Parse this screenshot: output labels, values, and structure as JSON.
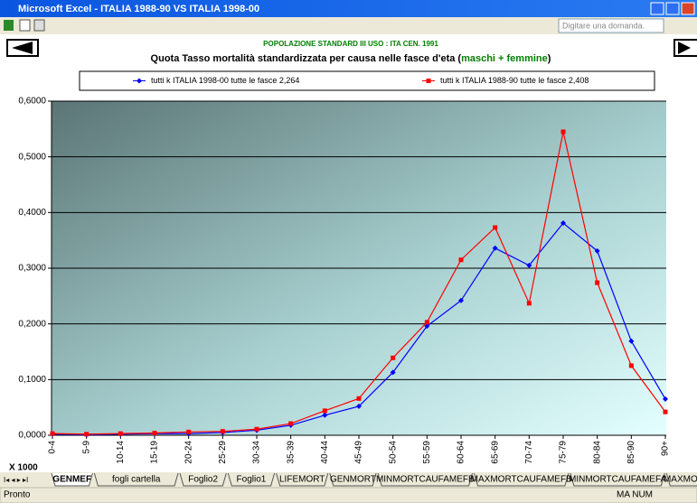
{
  "window": {
    "title": "Microsoft Excel - ITALIA 1988-90 VS ITALIA 1998-00",
    "search_placeholder": "Digitare una domanda."
  },
  "sheet_tabs": [
    "GENMEF",
    "fogli cartella",
    "Foglio2",
    "Foglio1",
    "LIFEMORT",
    "GENMORT",
    "MINMORTCAUFAMEFB",
    "MAXMORTCAUFAMEFB",
    "MINMORTCAUFAMEFA",
    "MAXMORTCAUFAME"
  ],
  "status_bar": {
    "left": "Pronto",
    "right": "MA NUM"
  },
  "chart_data": {
    "type": "line",
    "subtitle": "POPOLAZIONE STANDARD  III USO : ITA CEN. 1991",
    "title_parts": [
      "Quota Tasso mortalità standardizzata per causa nelle fasce d'eta (",
      "maschi + femmine",
      ")"
    ],
    "x_unit_label": "X 1000",
    "categories": [
      "0-4",
      "5-9",
      "10-14",
      "15-19",
      "20-24",
      "25-29",
      "30-34",
      "35-39",
      "40-44",
      "45-49",
      "50-54",
      "55-59",
      "60-64",
      "65-69",
      "70-74",
      "75-79",
      "80-84",
      "85-90",
      "90+"
    ],
    "series": [
      {
        "name": "tutti k ITALIA 1998-00 tutte le fasce 2,264",
        "color": "#0000ff",
        "marker": "diamond",
        "values": [
          0.002,
          0.001,
          0.002,
          0.003,
          0.003,
          0.005,
          0.009,
          0.018,
          0.036,
          0.052,
          0.113,
          0.196,
          0.242,
          0.336,
          0.305,
          0.381,
          0.331,
          0.169,
          0.065
        ]
      },
      {
        "name": "tutti k ITALIA 1988-90 tutte le fasce 2,408",
        "color": "#ff0000",
        "marker": "square",
        "values": [
          0.003,
          0.002,
          0.003,
          0.004,
          0.006,
          0.007,
          0.011,
          0.021,
          0.044,
          0.066,
          0.139,
          0.203,
          0.315,
          0.373,
          0.237,
          0.545,
          0.274,
          0.125,
          0.042
        ]
      }
    ],
    "ylim": [
      0,
      0.6
    ],
    "yticks": [
      {
        "value": 0,
        "label": "0,0000"
      },
      {
        "value": 0.1,
        "label": "0,1000"
      },
      {
        "value": 0.2,
        "label": "0,2000"
      },
      {
        "value": 0.3,
        "label": "0,3000"
      },
      {
        "value": 0.4,
        "label": "0,4000"
      },
      {
        "value": 0.5,
        "label": "0,5000"
      },
      {
        "value": 0.6,
        "label": "0,6000"
      }
    ],
    "grid": true
  }
}
